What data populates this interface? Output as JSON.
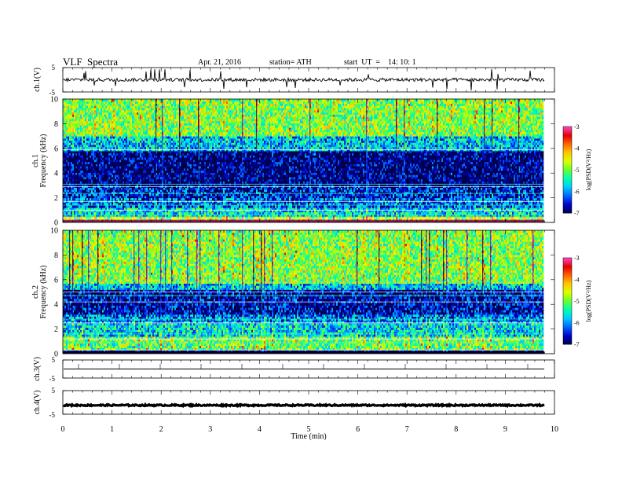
{
  "header": {
    "title": "VLF  Spectra",
    "date": "Apr. 21, 2016",
    "station": "station= ATH",
    "start": "start  UT  =    14: 10: 1"
  },
  "chart_data": [
    {
      "type": "line",
      "panel": "ch1-waveform",
      "ylabel": "ch.1(V)",
      "xlim": [
        0,
        10
      ],
      "ylim": [
        -5,
        5
      ],
      "yticks": [
        "5",
        "-5"
      ],
      "series": [
        {
          "values_summary": {
            "baseline": 0.0,
            "noise_amplitude": 0.7,
            "spike_amplitude": 4.5
          }
        }
      ],
      "color": "#000000"
    },
    {
      "type": "heatmap",
      "panel": "ch1-spectrogram",
      "ylabel": "ch.1\nFrequency (kHz)",
      "ylim": [
        0,
        10
      ],
      "yticks": [
        "0",
        "2",
        "4",
        "6",
        "8",
        "10"
      ],
      "xlim": [
        0,
        9.8
      ],
      "colorbar": {
        "label": "log(PSD(V²/Hz)",
        "range": [
          -7,
          -3
        ],
        "ticks": [
          "-3",
          "-4",
          "-5",
          "-6",
          "-7"
        ]
      },
      "bands": [
        {
          "f0": 0.0,
          "f1": 0.25,
          "level": -3.6
        },
        {
          "f0": 0.25,
          "f1": 0.5,
          "level": -4.8
        },
        {
          "f0": 0.5,
          "f1": 1.2,
          "level": -5.7
        },
        {
          "f0": 1.2,
          "f1": 2.0,
          "level": -6.2
        },
        {
          "f0": 2.0,
          "f1": 3.0,
          "level": -6.5
        },
        {
          "f0": 3.0,
          "f1": 5.8,
          "level": -6.9
        },
        {
          "f0": 5.8,
          "f1": 7.0,
          "level": -5.8
        },
        {
          "f0": 7.0,
          "f1": 10.0,
          "level": -4.9
        }
      ],
      "lines_khz": [
        0.35,
        0.6,
        1.0,
        1.4,
        1.7,
        2.35,
        2.9,
        3.1,
        5.9
      ]
    },
    {
      "type": "heatmap",
      "panel": "ch2-spectrogram",
      "ylabel": "ch.2\nFrequency (kHz)",
      "ylim": [
        0,
        10
      ],
      "yticks": [
        "0",
        "2",
        "4",
        "6",
        "8",
        "10"
      ],
      "xlim": [
        0,
        9.8
      ],
      "colorbar": {
        "label": "log(PSD(V²/Hz)",
        "range": [
          -7,
          -3
        ],
        "ticks": [
          "-3",
          "-4",
          "-5",
          "-6",
          "-7"
        ]
      },
      "bands": [
        {
          "f0": 0.0,
          "f1": 0.3,
          "level": -6.9
        },
        {
          "f0": 0.3,
          "f1": 1.4,
          "level": -5.1
        },
        {
          "f0": 1.4,
          "f1": 2.5,
          "level": -5.7
        },
        {
          "f0": 2.5,
          "f1": 3.2,
          "level": -6.1
        },
        {
          "f0": 3.2,
          "f1": 5.2,
          "level": -6.7
        },
        {
          "f0": 5.2,
          "f1": 5.7,
          "level": -5.8
        },
        {
          "f0": 5.7,
          "f1": 10.0,
          "level": -4.9
        }
      ],
      "lines_khz": [
        0.3,
        0.9,
        1.2,
        1.6,
        2.5,
        2.8,
        4.2,
        4.7,
        5.0,
        5.8
      ]
    },
    {
      "type": "line",
      "panel": "ch3-waveform",
      "ylabel": "ch.3(V)",
      "xlim": [
        0,
        10
      ],
      "ylim": [
        -5,
        5
      ],
      "yticks": [
        "5",
        "-5"
      ],
      "series": [
        {
          "values_summary": {
            "baseline": 0.0,
            "noise_amplitude": 0.0,
            "spike_amplitude": 0.0
          }
        }
      ],
      "color": "#000000"
    },
    {
      "type": "line",
      "panel": "ch4-waveform",
      "ylabel": "ch.4(V)",
      "xlim": [
        0,
        10
      ],
      "ylim": [
        -5,
        5
      ],
      "yticks": [
        "5",
        "-5"
      ],
      "series": [
        {
          "values_summary": {
            "baseline": -1.2,
            "noise_amplitude": 0.3,
            "spike_amplitude": 0.0
          }
        }
      ],
      "color": "#000000"
    }
  ],
  "xaxis": {
    "label": "Time  (min)",
    "ticks": [
      "0",
      "1",
      "2",
      "3",
      "4",
      "5",
      "6",
      "7",
      "8",
      "9",
      "10"
    ],
    "xlim": [
      0,
      10
    ]
  },
  "colors": {
    "colormap": [
      "#00004b",
      "#0000c8",
      "#0064ff",
      "#00c8ff",
      "#00ffb4",
      "#64ff32",
      "#dcff00",
      "#ffc800",
      "#ff6400",
      "#e10000",
      "#ff46c8"
    ]
  }
}
